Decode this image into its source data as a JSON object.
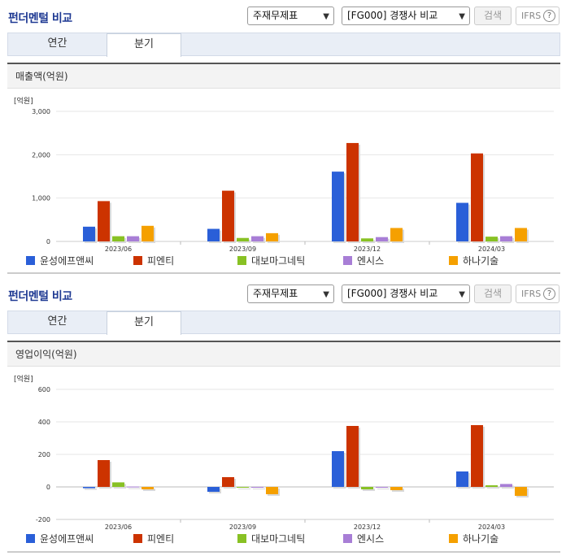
{
  "section_title": "펀더멘털 비교",
  "controls": {
    "statement_select": "주재무제표",
    "peer_select": "[FG000] 경쟁사 비교",
    "search_label": "검색",
    "ifrs_label": "IFRS",
    "help_glyph": "?"
  },
  "tabs": [
    {
      "label": "연간",
      "active": false
    },
    {
      "label": "분기",
      "active": true
    }
  ],
  "colors": {
    "series": [
      "#2a5fd8",
      "#cc3300",
      "#88c124",
      "#a87ed6",
      "#f5a000"
    ]
  },
  "chart_data": [
    {
      "type": "bar",
      "title": "매출액(억원)",
      "unit_label": "[억원]",
      "categories": [
        "2023/06",
        "2023/09",
        "2023/12",
        "2024/03"
      ],
      "ylim": [
        0,
        3000
      ],
      "yticks": [
        "3,000",
        "2,000",
        "1,000",
        "0"
      ],
      "ytick_values": [
        3000,
        2000,
        1000,
        0
      ],
      "series": [
        {
          "name": "윤성에프앤씨",
          "values": [
            340,
            290,
            1610,
            890
          ]
        },
        {
          "name": "피엔티",
          "values": [
            930,
            1170,
            2270,
            2030
          ]
        },
        {
          "name": "대보마그네틱",
          "values": [
            120,
            80,
            70,
            110
          ]
        },
        {
          "name": "엔시스",
          "values": [
            120,
            120,
            100,
            120
          ]
        },
        {
          "name": "하나기술",
          "values": [
            360,
            190,
            310,
            310
          ]
        }
      ]
    },
    {
      "type": "bar",
      "title": "영업이익(억원)",
      "unit_label": "[억원]",
      "categories": [
        "2023/06",
        "2023/09",
        "2023/12",
        "2024/03"
      ],
      "ylim": [
        -200,
        600
      ],
      "yticks": [
        "600",
        "400",
        "200",
        "0",
        "-200"
      ],
      "ytick_values": [
        600,
        400,
        200,
        0,
        -200
      ],
      "series": [
        {
          "name": "윤성에프앤씨",
          "values": [
            -8,
            -30,
            220,
            95
          ]
        },
        {
          "name": "피엔티",
          "values": [
            165,
            60,
            375,
            380
          ]
        },
        {
          "name": "대보마그네틱",
          "values": [
            28,
            -5,
            -15,
            10
          ]
        },
        {
          "name": "엔시스",
          "values": [
            2,
            -3,
            0,
            18
          ]
        },
        {
          "name": "하나기술",
          "values": [
            -15,
            -45,
            -20,
            -55
          ]
        }
      ]
    }
  ]
}
